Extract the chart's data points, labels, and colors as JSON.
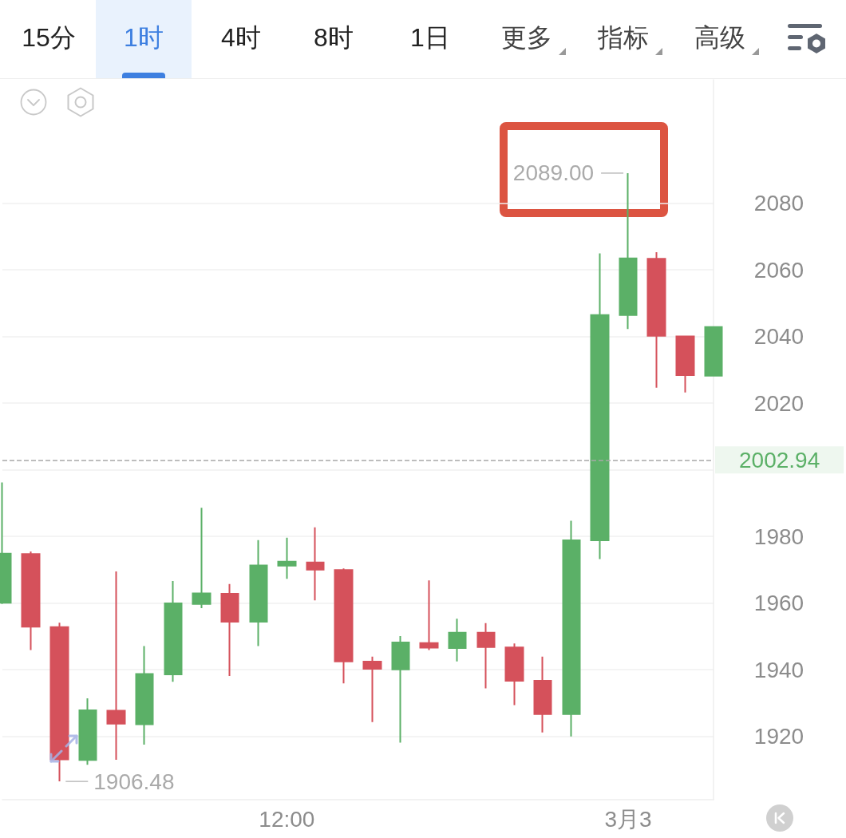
{
  "chart_data": {
    "type": "candlestick",
    "categories": [
      null,
      null,
      null,
      null,
      null,
      null,
      null,
      null,
      null,
      null,
      "12:00",
      null,
      null,
      null,
      null,
      null,
      null,
      null,
      null,
      null,
      null,
      null,
      "3月3",
      null,
      null,
      null
    ],
    "ohlc": [
      [
        1960.1,
        1996.2,
        1959.7,
        1974.8
      ],
      [
        1974.7,
        1975.5,
        1945.9,
        1952.9
      ],
      [
        1952.8,
        1954.1,
        1906.48,
        1913.1
      ],
      [
        1912.9,
        1931.4,
        1911.5,
        1927.8
      ],
      [
        1927.7,
        1969.5,
        1913.0,
        1923.8
      ],
      [
        1923.6,
        1947.1,
        1917.5,
        1938.7
      ],
      [
        1938.6,
        1966.6,
        1936.4,
        1959.9
      ],
      [
        1959.7,
        1988.6,
        1958.5,
        1962.9
      ],
      [
        1962.8,
        1965.7,
        1938.1,
        1954.4
      ],
      [
        1954.4,
        1978.9,
        1947.1,
        1971.3
      ],
      [
        1971.2,
        1979.6,
        1967.3,
        1972.4
      ],
      [
        1972.2,
        1982.7,
        1960.8,
        1970.0
      ],
      [
        1969.9,
        1970.4,
        1935.9,
        1942.5
      ],
      [
        1942.4,
        1943.9,
        1924.3,
        1940.3
      ],
      [
        1940.1,
        1950.1,
        1918.1,
        1948.2
      ],
      [
        1948.0,
        1966.8,
        1945.9,
        1946.6
      ],
      [
        1946.5,
        1955.3,
        1942.5,
        1951.1
      ],
      [
        1951.1,
        1954.0,
        1934.4,
        1946.8
      ],
      [
        1946.7,
        1947.9,
        1929.4,
        1936.7
      ],
      [
        1936.7,
        1943.9,
        1921.2,
        1926.7
      ],
      [
        1926.7,
        1984.7,
        1920.0,
        1978.8
      ],
      [
        1978.8,
        2064.9,
        1973.2,
        2046.4
      ],
      [
        2046.4,
        2089.0,
        2042.2,
        2063.4
      ],
      [
        2063.3,
        2065.3,
        2024.6,
        2040.2
      ],
      [
        2040.0,
        2040.2,
        2023.2,
        2028.4
      ],
      [
        2028.2,
        2042.8,
        2028.2,
        2042.8
      ]
    ],
    "colors": [
      "#5bb067",
      "#d5515b",
      "#d5515b",
      "#5bb067",
      "#d5515b",
      "#5bb067",
      "#5bb067",
      "#5bb067",
      "#d5515b",
      "#5bb067",
      "#5bb067",
      "#d5515b",
      "#d5515b",
      "#d5515b",
      "#5bb067",
      "#d5515b",
      "#5bb067",
      "#d5515b",
      "#d5515b",
      "#d5515b",
      "#5bb067",
      "#5bb067",
      "#5bb067",
      "#d5515b",
      "#d5515b",
      "#5bb067"
    ],
    "ylim": [
      1901,
      2117
    ],
    "yticks": [
      1920,
      1940,
      1960,
      1980,
      {
        "value": 2000,
        "label": null
      },
      2020,
      2040,
      2060,
      2080
    ],
    "grid": "y",
    "ref_lines": [
      {
        "axis": "y",
        "value": 2002.94,
        "label": "2002.94",
        "color": "#a8a8a8",
        "line_style": "dashed"
      }
    ],
    "annotations": [
      "15分",
      "1时",
      "4时",
      "8时",
      "1日",
      "更多",
      "指标",
      "高级",
      "2089.00",
      "1906.48"
    ]
  }
}
